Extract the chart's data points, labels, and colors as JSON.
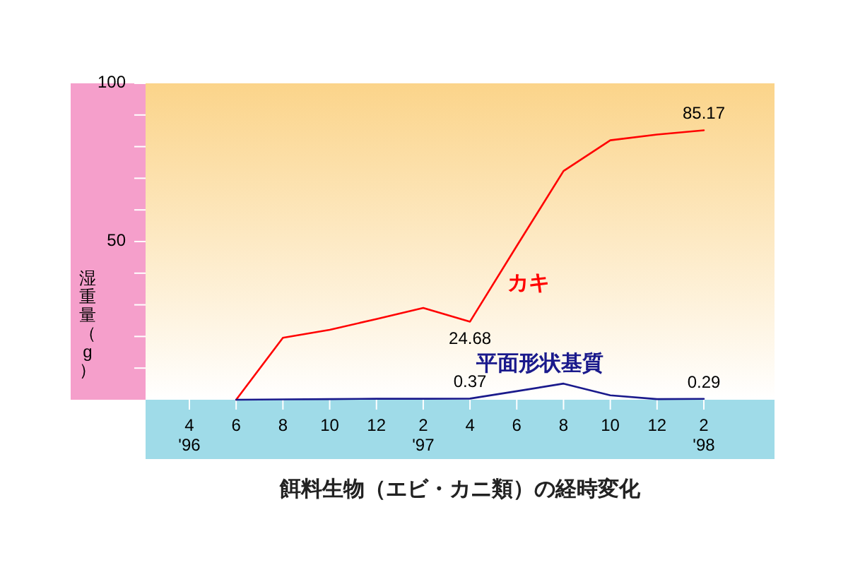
{
  "chart_data": {
    "type": "line",
    "title": "餌料生物（エビ・カニ類）の経時変化",
    "ylabel": "湿重量（g）",
    "categories": [
      "4\n'96",
      "6",
      "8",
      "10",
      "12",
      "2\n'97",
      "4",
      "6",
      "8",
      "10",
      "12",
      "2\n'98"
    ],
    "series": [
      {
        "name": "カキ",
        "color": "#ff0000",
        "values": [
          null,
          0,
          19.6,
          22.1,
          25.5,
          29.0,
          24.68,
          48.6,
          72.3,
          82.0,
          83.8,
          85.17
        ],
        "value_labels": [
          null,
          null,
          null,
          null,
          null,
          null,
          "24.68",
          null,
          null,
          null,
          null,
          "85.17"
        ]
      },
      {
        "name": "平面形状基質",
        "color": "#1a1a8c",
        "values": [
          null,
          0,
          0.1,
          0.2,
          0.3,
          0.3,
          0.37,
          2.7,
          5.1,
          1.4,
          0.2,
          0.29
        ],
        "value_labels": [
          null,
          null,
          null,
          null,
          null,
          null,
          "0.37",
          null,
          null,
          null,
          null,
          "0.29"
        ]
      }
    ],
    "ylim": [
      0,
      100
    ],
    "yticks": [
      {
        "value": 10,
        "label": null
      },
      {
        "value": 20,
        "label": null
      },
      {
        "value": 30,
        "label": null
      },
      {
        "value": 40,
        "label": null
      },
      50,
      {
        "value": 60,
        "label": null
      },
      {
        "value": 70,
        "label": null
      },
      {
        "value": 80,
        "label": null
      },
      {
        "value": 90,
        "label": null
      },
      100
    ],
    "grid": false,
    "marker": "none",
    "line_style": "solid"
  }
}
